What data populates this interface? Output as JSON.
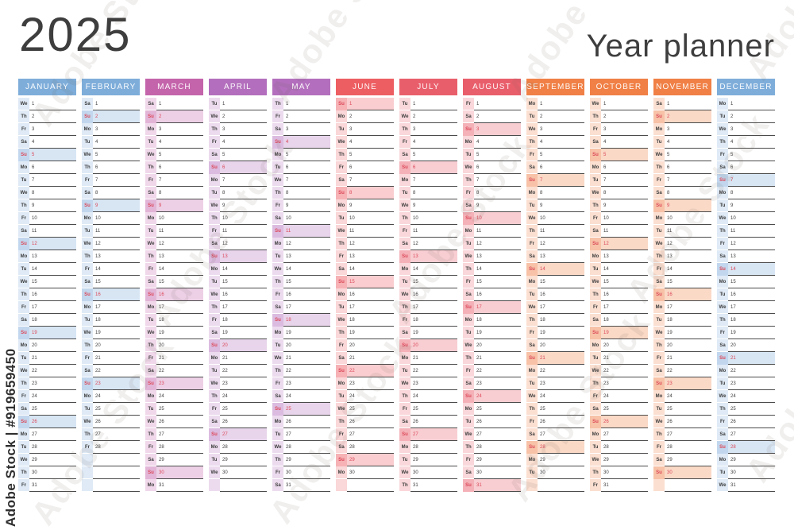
{
  "title": "2025",
  "subtitle": "Year planner",
  "watermark": {
    "side_text": "Adobe Stock | #919659450",
    "tile_text": "Adobe Stock"
  },
  "weekday_labels": [
    "Mo",
    "Tu",
    "We",
    "Th",
    "Fr",
    "Sa",
    "Su"
  ],
  "rows_per_column": 31,
  "colors": {
    "sunday_text": "#dc4758",
    "day_text": "#3d3d3d",
    "line": "#4b4b4b",
    "title_text": "#3e3e3e"
  },
  "months": [
    {
      "name": "JANUARY",
      "color": "#7eadda",
      "days": [
        [
          "We",
          1
        ],
        [
          "Th",
          2
        ],
        [
          "Fr",
          3
        ],
        [
          "Sa",
          4
        ],
        [
          "Su",
          5
        ],
        [
          "Mo",
          6
        ],
        [
          "Tu",
          7
        ],
        [
          "We",
          8
        ],
        [
          "Th",
          9
        ],
        [
          "Fr",
          10
        ],
        [
          "Sa",
          11
        ],
        [
          "Su",
          12
        ],
        [
          "Mo",
          13
        ],
        [
          "Tu",
          14
        ],
        [
          "We",
          15
        ],
        [
          "Th",
          16
        ],
        [
          "Fr",
          17
        ],
        [
          "Sa",
          18
        ],
        [
          "Su",
          19
        ],
        [
          "Mo",
          20
        ],
        [
          "Tu",
          21
        ],
        [
          "We",
          22
        ],
        [
          "Th",
          23
        ],
        [
          "Fr",
          24
        ],
        [
          "Sa",
          25
        ],
        [
          "Su",
          26
        ],
        [
          "Mo",
          27
        ],
        [
          "Tu",
          28
        ],
        [
          "We",
          29
        ],
        [
          "Th",
          30
        ],
        [
          "Fr",
          31
        ]
      ]
    },
    {
      "name": "FEBRUARY",
      "color": "#7eadda",
      "days": [
        [
          "Sa",
          1
        ],
        [
          "Su",
          2
        ],
        [
          "Mo",
          3
        ],
        [
          "Tu",
          4
        ],
        [
          "We",
          5
        ],
        [
          "Th",
          6
        ],
        [
          "Fr",
          7
        ],
        [
          "Sa",
          8
        ],
        [
          "Su",
          9
        ],
        [
          "Mo",
          10
        ],
        [
          "Tu",
          11
        ],
        [
          "We",
          12
        ],
        [
          "Th",
          13
        ],
        [
          "Fr",
          14
        ],
        [
          "Sa",
          15
        ],
        [
          "Su",
          16
        ],
        [
          "Mo",
          17
        ],
        [
          "Tu",
          18
        ],
        [
          "We",
          19
        ],
        [
          "Th",
          20
        ],
        [
          "Fr",
          21
        ],
        [
          "Sa",
          22
        ],
        [
          "Su",
          23
        ],
        [
          "Mo",
          24
        ],
        [
          "Tu",
          25
        ],
        [
          "We",
          26
        ],
        [
          "Th",
          27
        ],
        [
          "Fr",
          28
        ]
      ]
    },
    {
      "name": "MARCH",
      "color": "#c464ab",
      "days": [
        [
          "Sa",
          1
        ],
        [
          "Su",
          2
        ],
        [
          "Mo",
          3
        ],
        [
          "Tu",
          4
        ],
        [
          "We",
          5
        ],
        [
          "Th",
          6
        ],
        [
          "Fr",
          7
        ],
        [
          "Sa",
          8
        ],
        [
          "Su",
          9
        ],
        [
          "Mo",
          10
        ],
        [
          "Tu",
          11
        ],
        [
          "We",
          12
        ],
        [
          "Th",
          13
        ],
        [
          "Fr",
          14
        ],
        [
          "Sa",
          15
        ],
        [
          "Su",
          16
        ],
        [
          "Mo",
          17
        ],
        [
          "Tu",
          18
        ],
        [
          "We",
          19
        ],
        [
          "Th",
          20
        ],
        [
          "Fr",
          21
        ],
        [
          "Sa",
          22
        ],
        [
          "Su",
          23
        ],
        [
          "Mo",
          24
        ],
        [
          "Tu",
          25
        ],
        [
          "We",
          26
        ],
        [
          "Th",
          27
        ],
        [
          "Fr",
          28
        ],
        [
          "Sa",
          29
        ],
        [
          "Su",
          30
        ],
        [
          "Mo",
          31
        ]
      ]
    },
    {
      "name": "APRIL",
      "color": "#b36fbd",
      "days": [
        [
          "Tu",
          1
        ],
        [
          "We",
          2
        ],
        [
          "Th",
          3
        ],
        [
          "Fr",
          4
        ],
        [
          "Sa",
          5
        ],
        [
          "Su",
          6
        ],
        [
          "Mo",
          7
        ],
        [
          "Tu",
          8
        ],
        [
          "We",
          9
        ],
        [
          "Th",
          10
        ],
        [
          "Fr",
          11
        ],
        [
          "Sa",
          12
        ],
        [
          "Su",
          13
        ],
        [
          "Mo",
          14
        ],
        [
          "Tu",
          15
        ],
        [
          "We",
          16
        ],
        [
          "Th",
          17
        ],
        [
          "Fr",
          18
        ],
        [
          "Sa",
          19
        ],
        [
          "Su",
          20
        ],
        [
          "Mo",
          21
        ],
        [
          "Tu",
          22
        ],
        [
          "We",
          23
        ],
        [
          "Th",
          24
        ],
        [
          "Fr",
          25
        ],
        [
          "Sa",
          26
        ],
        [
          "Su",
          27
        ],
        [
          "Mo",
          28
        ],
        [
          "Tu",
          29
        ],
        [
          "We",
          30
        ]
      ]
    },
    {
      "name": "MAY",
      "color": "#b36fbd",
      "days": [
        [
          "Th",
          1
        ],
        [
          "Fr",
          2
        ],
        [
          "Sa",
          3
        ],
        [
          "Su",
          4
        ],
        [
          "Mo",
          5
        ],
        [
          "Tu",
          6
        ],
        [
          "We",
          7
        ],
        [
          "Th",
          8
        ],
        [
          "Fr",
          9
        ],
        [
          "Sa",
          10
        ],
        [
          "Su",
          11
        ],
        [
          "Mo",
          12
        ],
        [
          "Tu",
          13
        ],
        [
          "We",
          14
        ],
        [
          "Th",
          15
        ],
        [
          "Fr",
          16
        ],
        [
          "Sa",
          17
        ],
        [
          "Su",
          18
        ],
        [
          "Mo",
          19
        ],
        [
          "Tu",
          20
        ],
        [
          "We",
          21
        ],
        [
          "Th",
          22
        ],
        [
          "Fr",
          23
        ],
        [
          "Sa",
          24
        ],
        [
          "Su",
          25
        ],
        [
          "Mo",
          26
        ],
        [
          "Tu",
          27
        ],
        [
          "We",
          28
        ],
        [
          "Th",
          29
        ],
        [
          "Fr",
          30
        ],
        [
          "Sa",
          31
        ]
      ]
    },
    {
      "name": "JUNE",
      "color": "#ed5e62",
      "days": [
        [
          "Su",
          1
        ],
        [
          "Mo",
          2
        ],
        [
          "Tu",
          3
        ],
        [
          "We",
          4
        ],
        [
          "Th",
          5
        ],
        [
          "Fr",
          6
        ],
        [
          "Sa",
          7
        ],
        [
          "Su",
          8
        ],
        [
          "Mo",
          9
        ],
        [
          "Tu",
          10
        ],
        [
          "We",
          11
        ],
        [
          "Th",
          12
        ],
        [
          "Fr",
          13
        ],
        [
          "Sa",
          14
        ],
        [
          "Su",
          15
        ],
        [
          "Mo",
          16
        ],
        [
          "Tu",
          17
        ],
        [
          "We",
          18
        ],
        [
          "Th",
          19
        ],
        [
          "Fr",
          20
        ],
        [
          "Sa",
          21
        ],
        [
          "Su",
          22
        ],
        [
          "Mo",
          23
        ],
        [
          "Tu",
          24
        ],
        [
          "We",
          25
        ],
        [
          "Th",
          26
        ],
        [
          "Fr",
          27
        ],
        [
          "Sa",
          28
        ],
        [
          "Su",
          29
        ],
        [
          "Mo",
          30
        ]
      ]
    },
    {
      "name": "JULY",
      "color": "#e95e6b",
      "days": [
        [
          "Tu",
          1
        ],
        [
          "We",
          2
        ],
        [
          "Th",
          3
        ],
        [
          "Fr",
          4
        ],
        [
          "Sa",
          5
        ],
        [
          "Su",
          6
        ],
        [
          "Mo",
          7
        ],
        [
          "Tu",
          8
        ],
        [
          "We",
          9
        ],
        [
          "Th",
          10
        ],
        [
          "Fr",
          11
        ],
        [
          "Sa",
          12
        ],
        [
          "Su",
          13
        ],
        [
          "Mo",
          14
        ],
        [
          "Tu",
          15
        ],
        [
          "We",
          16
        ],
        [
          "Th",
          17
        ],
        [
          "Fr",
          18
        ],
        [
          "Sa",
          19
        ],
        [
          "Su",
          20
        ],
        [
          "Mo",
          21
        ],
        [
          "Tu",
          22
        ],
        [
          "We",
          23
        ],
        [
          "Th",
          24
        ],
        [
          "Fr",
          25
        ],
        [
          "Sa",
          26
        ],
        [
          "Su",
          27
        ],
        [
          "Mo",
          28
        ],
        [
          "Tu",
          29
        ],
        [
          "We",
          30
        ],
        [
          "Th",
          31
        ]
      ]
    },
    {
      "name": "AUGUST",
      "color": "#e95e6b",
      "days": [
        [
          "Fr",
          1
        ],
        [
          "Sa",
          2
        ],
        [
          "Su",
          3
        ],
        [
          "Mo",
          4
        ],
        [
          "Tu",
          5
        ],
        [
          "We",
          6
        ],
        [
          "Th",
          7
        ],
        [
          "Fr",
          8
        ],
        [
          "Sa",
          9
        ],
        [
          "Su",
          10
        ],
        [
          "Mo",
          11
        ],
        [
          "Tu",
          12
        ],
        [
          "We",
          13
        ],
        [
          "Th",
          14
        ],
        [
          "Fr",
          15
        ],
        [
          "Sa",
          16
        ],
        [
          "Su",
          17
        ],
        [
          "Mo",
          18
        ],
        [
          "Tu",
          19
        ],
        [
          "We",
          20
        ],
        [
          "Th",
          21
        ],
        [
          "Fr",
          22
        ],
        [
          "Sa",
          23
        ],
        [
          "Su",
          24
        ],
        [
          "Mo",
          25
        ],
        [
          "Tu",
          26
        ],
        [
          "We",
          27
        ],
        [
          "Th",
          28
        ],
        [
          "Fr",
          29
        ],
        [
          "Sa",
          30
        ],
        [
          "Su",
          31
        ]
      ]
    },
    {
      "name": "SEPTEMBER",
      "color": "#f08046",
      "days": [
        [
          "Mo",
          1
        ],
        [
          "Tu",
          2
        ],
        [
          "We",
          3
        ],
        [
          "Th",
          4
        ],
        [
          "Fr",
          5
        ],
        [
          "Sa",
          6
        ],
        [
          "Su",
          7
        ],
        [
          "Mo",
          8
        ],
        [
          "Tu",
          9
        ],
        [
          "We",
          10
        ],
        [
          "Th",
          11
        ],
        [
          "Fr",
          12
        ],
        [
          "Sa",
          13
        ],
        [
          "Su",
          14
        ],
        [
          "Mo",
          15
        ],
        [
          "Tu",
          16
        ],
        [
          "We",
          17
        ],
        [
          "Th",
          18
        ],
        [
          "Fr",
          19
        ],
        [
          "Sa",
          20
        ],
        [
          "Su",
          21
        ],
        [
          "Mo",
          22
        ],
        [
          "Tu",
          23
        ],
        [
          "We",
          24
        ],
        [
          "Th",
          25
        ],
        [
          "Fr",
          26
        ],
        [
          "Sa",
          27
        ],
        [
          "Su",
          28
        ],
        [
          "Mo",
          29
        ],
        [
          "Tu",
          30
        ]
      ]
    },
    {
      "name": "OCTOBER",
      "color": "#f08046",
      "days": [
        [
          "We",
          1
        ],
        [
          "Th",
          2
        ],
        [
          "Fr",
          3
        ],
        [
          "Sa",
          4
        ],
        [
          "Su",
          5
        ],
        [
          "Mo",
          6
        ],
        [
          "Tu",
          7
        ],
        [
          "We",
          8
        ],
        [
          "Th",
          9
        ],
        [
          "Fr",
          10
        ],
        [
          "Sa",
          11
        ],
        [
          "Su",
          12
        ],
        [
          "Mo",
          13
        ],
        [
          "Tu",
          14
        ],
        [
          "We",
          15
        ],
        [
          "Th",
          16
        ],
        [
          "Fr",
          17
        ],
        [
          "Sa",
          18
        ],
        [
          "Su",
          19
        ],
        [
          "Mo",
          20
        ],
        [
          "Tu",
          21
        ],
        [
          "We",
          22
        ],
        [
          "Th",
          23
        ],
        [
          "Fr",
          24
        ],
        [
          "Sa",
          25
        ],
        [
          "Su",
          26
        ],
        [
          "Mo",
          27
        ],
        [
          "Tu",
          28
        ],
        [
          "We",
          29
        ],
        [
          "Th",
          30
        ],
        [
          "Fr",
          31
        ]
      ]
    },
    {
      "name": "NOVEMBER",
      "color": "#f08046",
      "days": [
        [
          "Sa",
          1
        ],
        [
          "Su",
          2
        ],
        [
          "Mo",
          3
        ],
        [
          "Tu",
          4
        ],
        [
          "We",
          5
        ],
        [
          "Th",
          6
        ],
        [
          "Fr",
          7
        ],
        [
          "Sa",
          8
        ],
        [
          "Su",
          9
        ],
        [
          "Mo",
          10
        ],
        [
          "Tu",
          11
        ],
        [
          "We",
          12
        ],
        [
          "Th",
          13
        ],
        [
          "Fr",
          14
        ],
        [
          "Sa",
          15
        ],
        [
          "Su",
          16
        ],
        [
          "Mo",
          17
        ],
        [
          "Tu",
          18
        ],
        [
          "We",
          19
        ],
        [
          "Th",
          20
        ],
        [
          "Fr",
          21
        ],
        [
          "Sa",
          22
        ],
        [
          "Su",
          23
        ],
        [
          "Mo",
          24
        ],
        [
          "Tu",
          25
        ],
        [
          "We",
          26
        ],
        [
          "Th",
          27
        ],
        [
          "Fr",
          28
        ],
        [
          "Sa",
          29
        ],
        [
          "Su",
          30
        ]
      ]
    },
    {
      "name": "DECEMBER",
      "color": "#7eadda",
      "days": [
        [
          "Mo",
          1
        ],
        [
          "Tu",
          2
        ],
        [
          "We",
          3
        ],
        [
          "Th",
          4
        ],
        [
          "Fr",
          5
        ],
        [
          "Sa",
          6
        ],
        [
          "Su",
          7
        ],
        [
          "Mo",
          8
        ],
        [
          "Tu",
          9
        ],
        [
          "We",
          10
        ],
        [
          "Th",
          11
        ],
        [
          "Fr",
          12
        ],
        [
          "Sa",
          13
        ],
        [
          "Su",
          14
        ],
        [
          "Mo",
          15
        ],
        [
          "Tu",
          16
        ],
        [
          "We",
          17
        ],
        [
          "Th",
          18
        ],
        [
          "Fr",
          19
        ],
        [
          "Sa",
          20
        ],
        [
          "Su",
          21
        ],
        [
          "Mo",
          22
        ],
        [
          "Tu",
          23
        ],
        [
          "We",
          24
        ],
        [
          "Th",
          25
        ],
        [
          "Fr",
          26
        ],
        [
          "Sa",
          27
        ],
        [
          "Su",
          28
        ],
        [
          "Mo",
          29
        ],
        [
          "Tu",
          30
        ],
        [
          "We",
          31
        ]
      ]
    }
  ]
}
